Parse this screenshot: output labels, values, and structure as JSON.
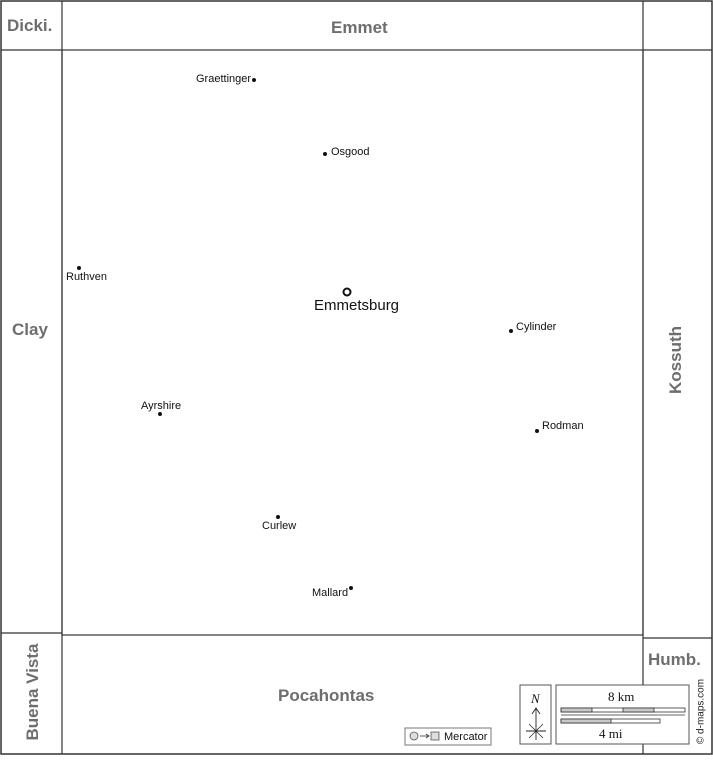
{
  "counties": {
    "north": "Emmet",
    "northwest": "Dicki.",
    "west": "Clay",
    "east": "Kossuth",
    "south": "Pocahontas",
    "southwest": "Buena Vista",
    "southeast": "Humb."
  },
  "county_seat": "Emmetsburg",
  "towns": [
    "Graettinger",
    "Osgood",
    "Ruthven",
    "Cylinder",
    "Ayrshire",
    "Rodman",
    "Curlew",
    "Mallard"
  ],
  "compass": {
    "north_label": "N"
  },
  "scale": {
    "km_label": "8 km",
    "mi_label": "4 mi"
  },
  "projection": {
    "label": "Mercator"
  },
  "credit": "© d-maps.com",
  "colors": {
    "border": "#333333",
    "county_label": "#6e6e6e",
    "scale_fill": "#c8c8c8"
  }
}
